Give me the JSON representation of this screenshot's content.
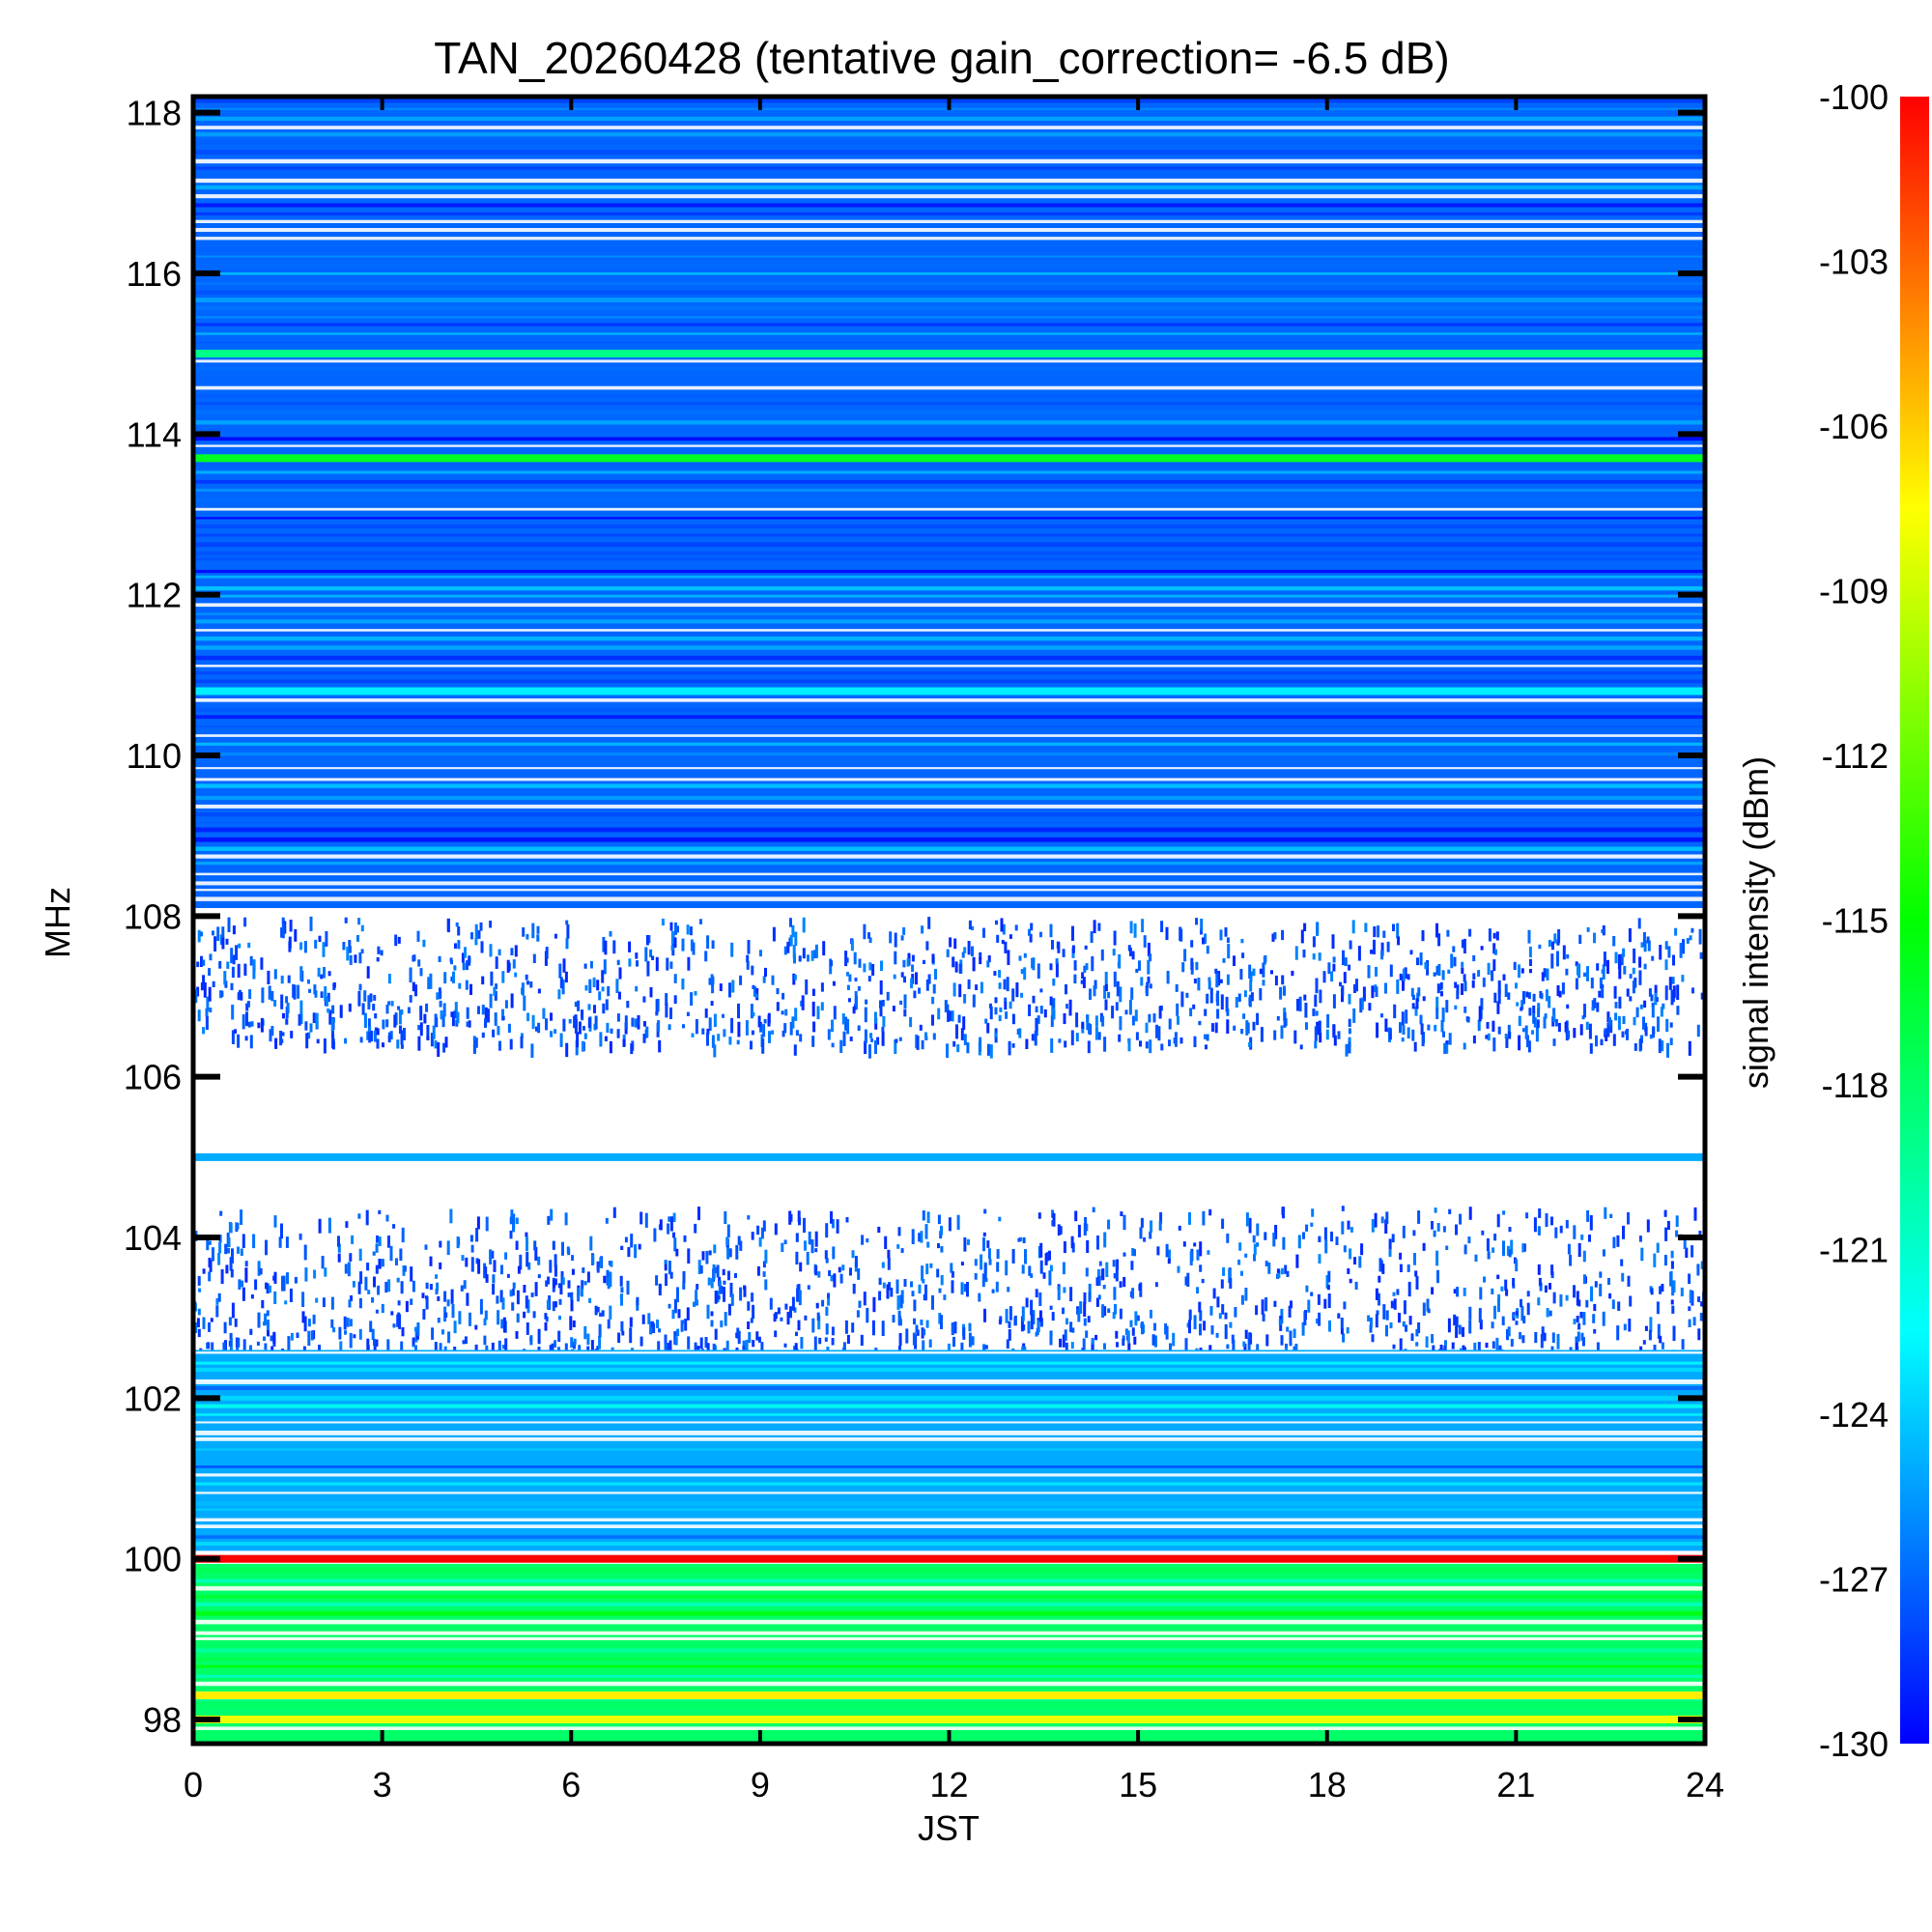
{
  "chart_data": {
    "type": "heatmap",
    "title": "TAN_20260428 (tentative gain_correction= -6.5 dB)",
    "xlabel": "JST",
    "ylabel": "MHz",
    "colorbar_label": "signal intensity (dBm)",
    "xlim": [
      0,
      24
    ],
    "ylim": [
      97.7,
      118.2
    ],
    "x_ticks": [
      0,
      3,
      6,
      9,
      12,
      15,
      18,
      21,
      24
    ],
    "x_tick_labels": [
      "0",
      "3",
      "6",
      "9",
      "12",
      "15",
      "18",
      "21",
      "24"
    ],
    "y_ticks": [
      98,
      100,
      102,
      104,
      106,
      108,
      110,
      112,
      114,
      116,
      118
    ],
    "y_tick_labels": [
      "98",
      "100",
      "102",
      "104",
      "106",
      "108",
      "110",
      "112",
      "114",
      "116",
      "118"
    ],
    "color_range": [
      -130,
      -100
    ],
    "colorbar_ticks": [
      -100,
      -103,
      -106,
      -109,
      -112,
      -115,
      -118,
      -121,
      -124,
      -127,
      -130
    ],
    "colorbar_tick_labels": [
      "-100",
      "-103",
      "-106",
      "-109",
      "-112",
      "-115",
      "-118",
      "-121",
      "-124",
      "-127",
      "-130"
    ],
    "colormap": [
      "#0000ff",
      "#0080ff",
      "#00ffff",
      "#00ff80",
      "#00ff00",
      "#80ff00",
      "#ffff00",
      "#ff8000",
      "#ff0000"
    ],
    "bands": [
      {
        "from_mhz": 108.1,
        "to_mhz": 118.2,
        "level_dbm": -127,
        "coverage": "dense"
      },
      {
        "from_mhz": 106.4,
        "to_mhz": 108.0,
        "level_dbm": -129,
        "coverage": "sparse"
      },
      {
        "from_mhz": 102.6,
        "to_mhz": 104.4,
        "level_dbm": -129,
        "coverage": "sparse"
      },
      {
        "from_mhz": 100.1,
        "to_mhz": 102.6,
        "level_dbm": -125,
        "coverage": "dense"
      },
      {
        "from_mhz": 97.7,
        "to_mhz": 100.0,
        "level_dbm": -118,
        "coverage": "dense"
      }
    ],
    "lines": [
      {
        "freq_mhz": 115.0,
        "level_dbm": -119
      },
      {
        "freq_mhz": 113.7,
        "level_dbm": -116
      },
      {
        "freq_mhz": 110.8,
        "level_dbm": -123
      },
      {
        "freq_mhz": 105.0,
        "level_dbm": -125
      },
      {
        "freq_mhz": 100.0,
        "level_dbm": -100
      },
      {
        "freq_mhz": 98.3,
        "level_dbm": -107
      },
      {
        "freq_mhz": 98.0,
        "level_dbm": -108
      }
    ]
  }
}
